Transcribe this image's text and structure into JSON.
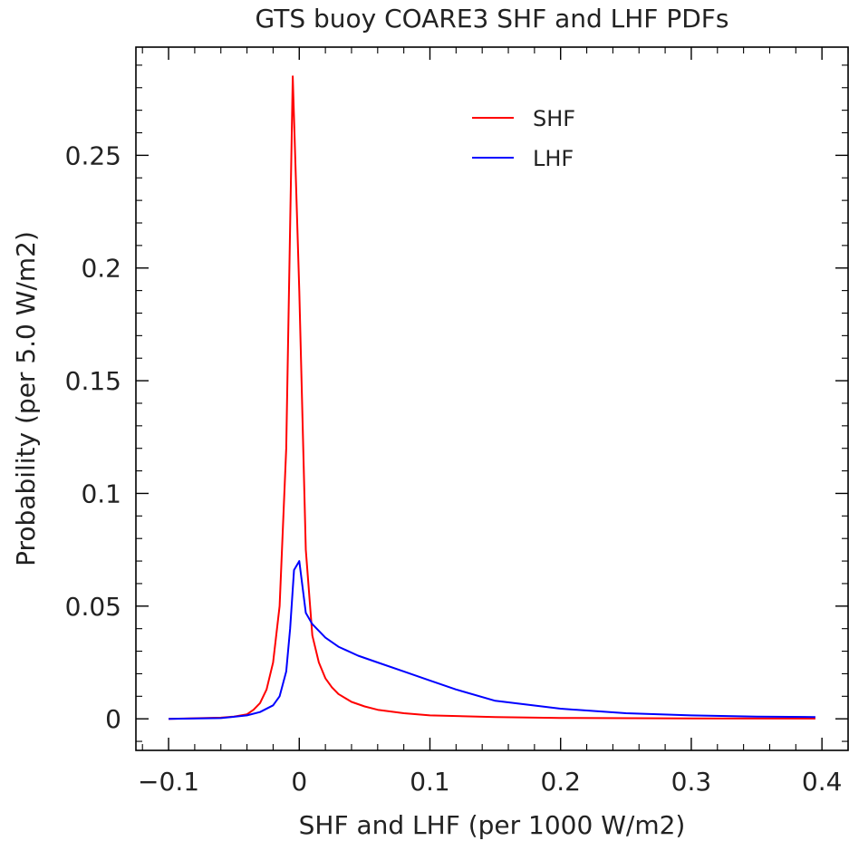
{
  "chart_data": {
    "type": "line",
    "title": "GTS buoy COARE3 SHF and LHF PDFs",
    "xlabel": "SHF and LHF (per 1000 W/m2)",
    "ylabel": "Probability (per 5.0 W/m2)",
    "xlim": [
      -0.125,
      0.42
    ],
    "ylim": [
      -0.014,
      0.298
    ],
    "xticks": [
      -0.1,
      0,
      0.1,
      0.2,
      0.3,
      0.4
    ],
    "xtick_labels": [
      "−0.1",
      "0",
      "0.1",
      "0.2",
      "0.3",
      "0.4"
    ],
    "yticks": [
      0,
      0.05,
      0.1,
      0.15,
      0.2,
      0.25
    ],
    "ytick_labels": [
      "0",
      "0.05",
      "0.1",
      "0.15",
      "0.2",
      "0.25"
    ],
    "grid": false,
    "legend_position": "top-center",
    "series": [
      {
        "name": "SHF",
        "color": "#ff0000",
        "x": [
          -0.1,
          -0.06,
          -0.05,
          -0.04,
          -0.035,
          -0.03,
          -0.025,
          -0.02,
          -0.015,
          -0.01,
          -0.005,
          0,
          0.005,
          0.01,
          0.015,
          0.02,
          0.025,
          0.03,
          0.04,
          0.05,
          0.06,
          0.08,
          0.1,
          0.15,
          0.2,
          0.3,
          0.395
        ],
        "y": [
          0,
          0.0005,
          0.001,
          0.002,
          0.004,
          0.007,
          0.013,
          0.025,
          0.05,
          0.12,
          0.285,
          0.19,
          0.075,
          0.037,
          0.025,
          0.018,
          0.014,
          0.011,
          0.0075,
          0.0055,
          0.004,
          0.0025,
          0.0015,
          0.0008,
          0.0004,
          0.0002,
          0.0001
        ]
      },
      {
        "name": "LHF",
        "color": "#0000ff",
        "x": [
          -0.1,
          -0.06,
          -0.04,
          -0.03,
          -0.02,
          -0.015,
          -0.01,
          -0.007,
          -0.004,
          0,
          0.005,
          0.01,
          0.02,
          0.03,
          0.045,
          0.06,
          0.08,
          0.1,
          0.12,
          0.15,
          0.2,
          0.25,
          0.3,
          0.35,
          0.395
        ],
        "y": [
          0,
          0.0003,
          0.0015,
          0.003,
          0.006,
          0.01,
          0.021,
          0.04,
          0.066,
          0.07,
          0.047,
          0.042,
          0.036,
          0.032,
          0.028,
          0.025,
          0.021,
          0.017,
          0.013,
          0.008,
          0.0045,
          0.0025,
          0.0015,
          0.001,
          0.0008
        ]
      }
    ]
  }
}
